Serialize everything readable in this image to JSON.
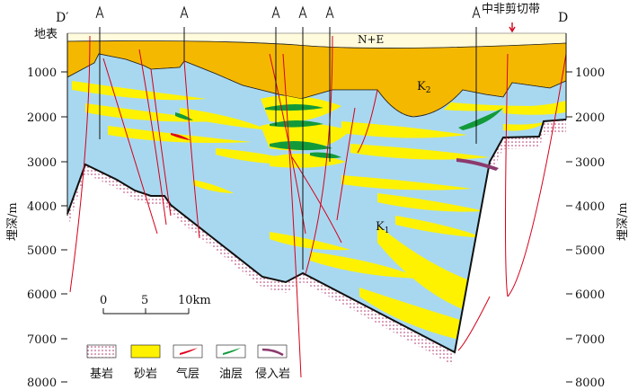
{
  "header": {
    "left_label": "D′",
    "right_label": "D",
    "surface_label": "地表",
    "fault_zone_label": "中非剪切带"
  },
  "axes": {
    "depth_unit_label": "埋深/m",
    "depth_ticks": [
      "1000",
      "2000",
      "3000",
      "4000",
      "5000",
      "6000",
      "7000",
      "8000"
    ]
  },
  "units": {
    "ne": "N+E",
    "k2": "K",
    "k2_sub": "2",
    "k1": "K",
    "k1_sub": "1"
  },
  "scale_bar": {
    "ticks": [
      "0",
      "5",
      "10km"
    ]
  },
  "legend": [
    {
      "name": "基岩",
      "pattern": "bedrock"
    },
    {
      "name": "砂岩",
      "color": "#fff200"
    },
    {
      "name": "气层",
      "color": "#e0001a"
    },
    {
      "name": "油层",
      "color": "#129a3a"
    },
    {
      "name": "侵入岩",
      "color": "#8b3a6e"
    }
  ],
  "colors": {
    "k1_fill": "#a8d8f0",
    "k2_fill": "#f5b800",
    "sand": "#fff200",
    "fault": "#d4001a",
    "oil": "#129a3a",
    "gas": "#e0001a",
    "intrusion": "#8b3a6e",
    "ne_fill": "#fffbdc"
  }
}
